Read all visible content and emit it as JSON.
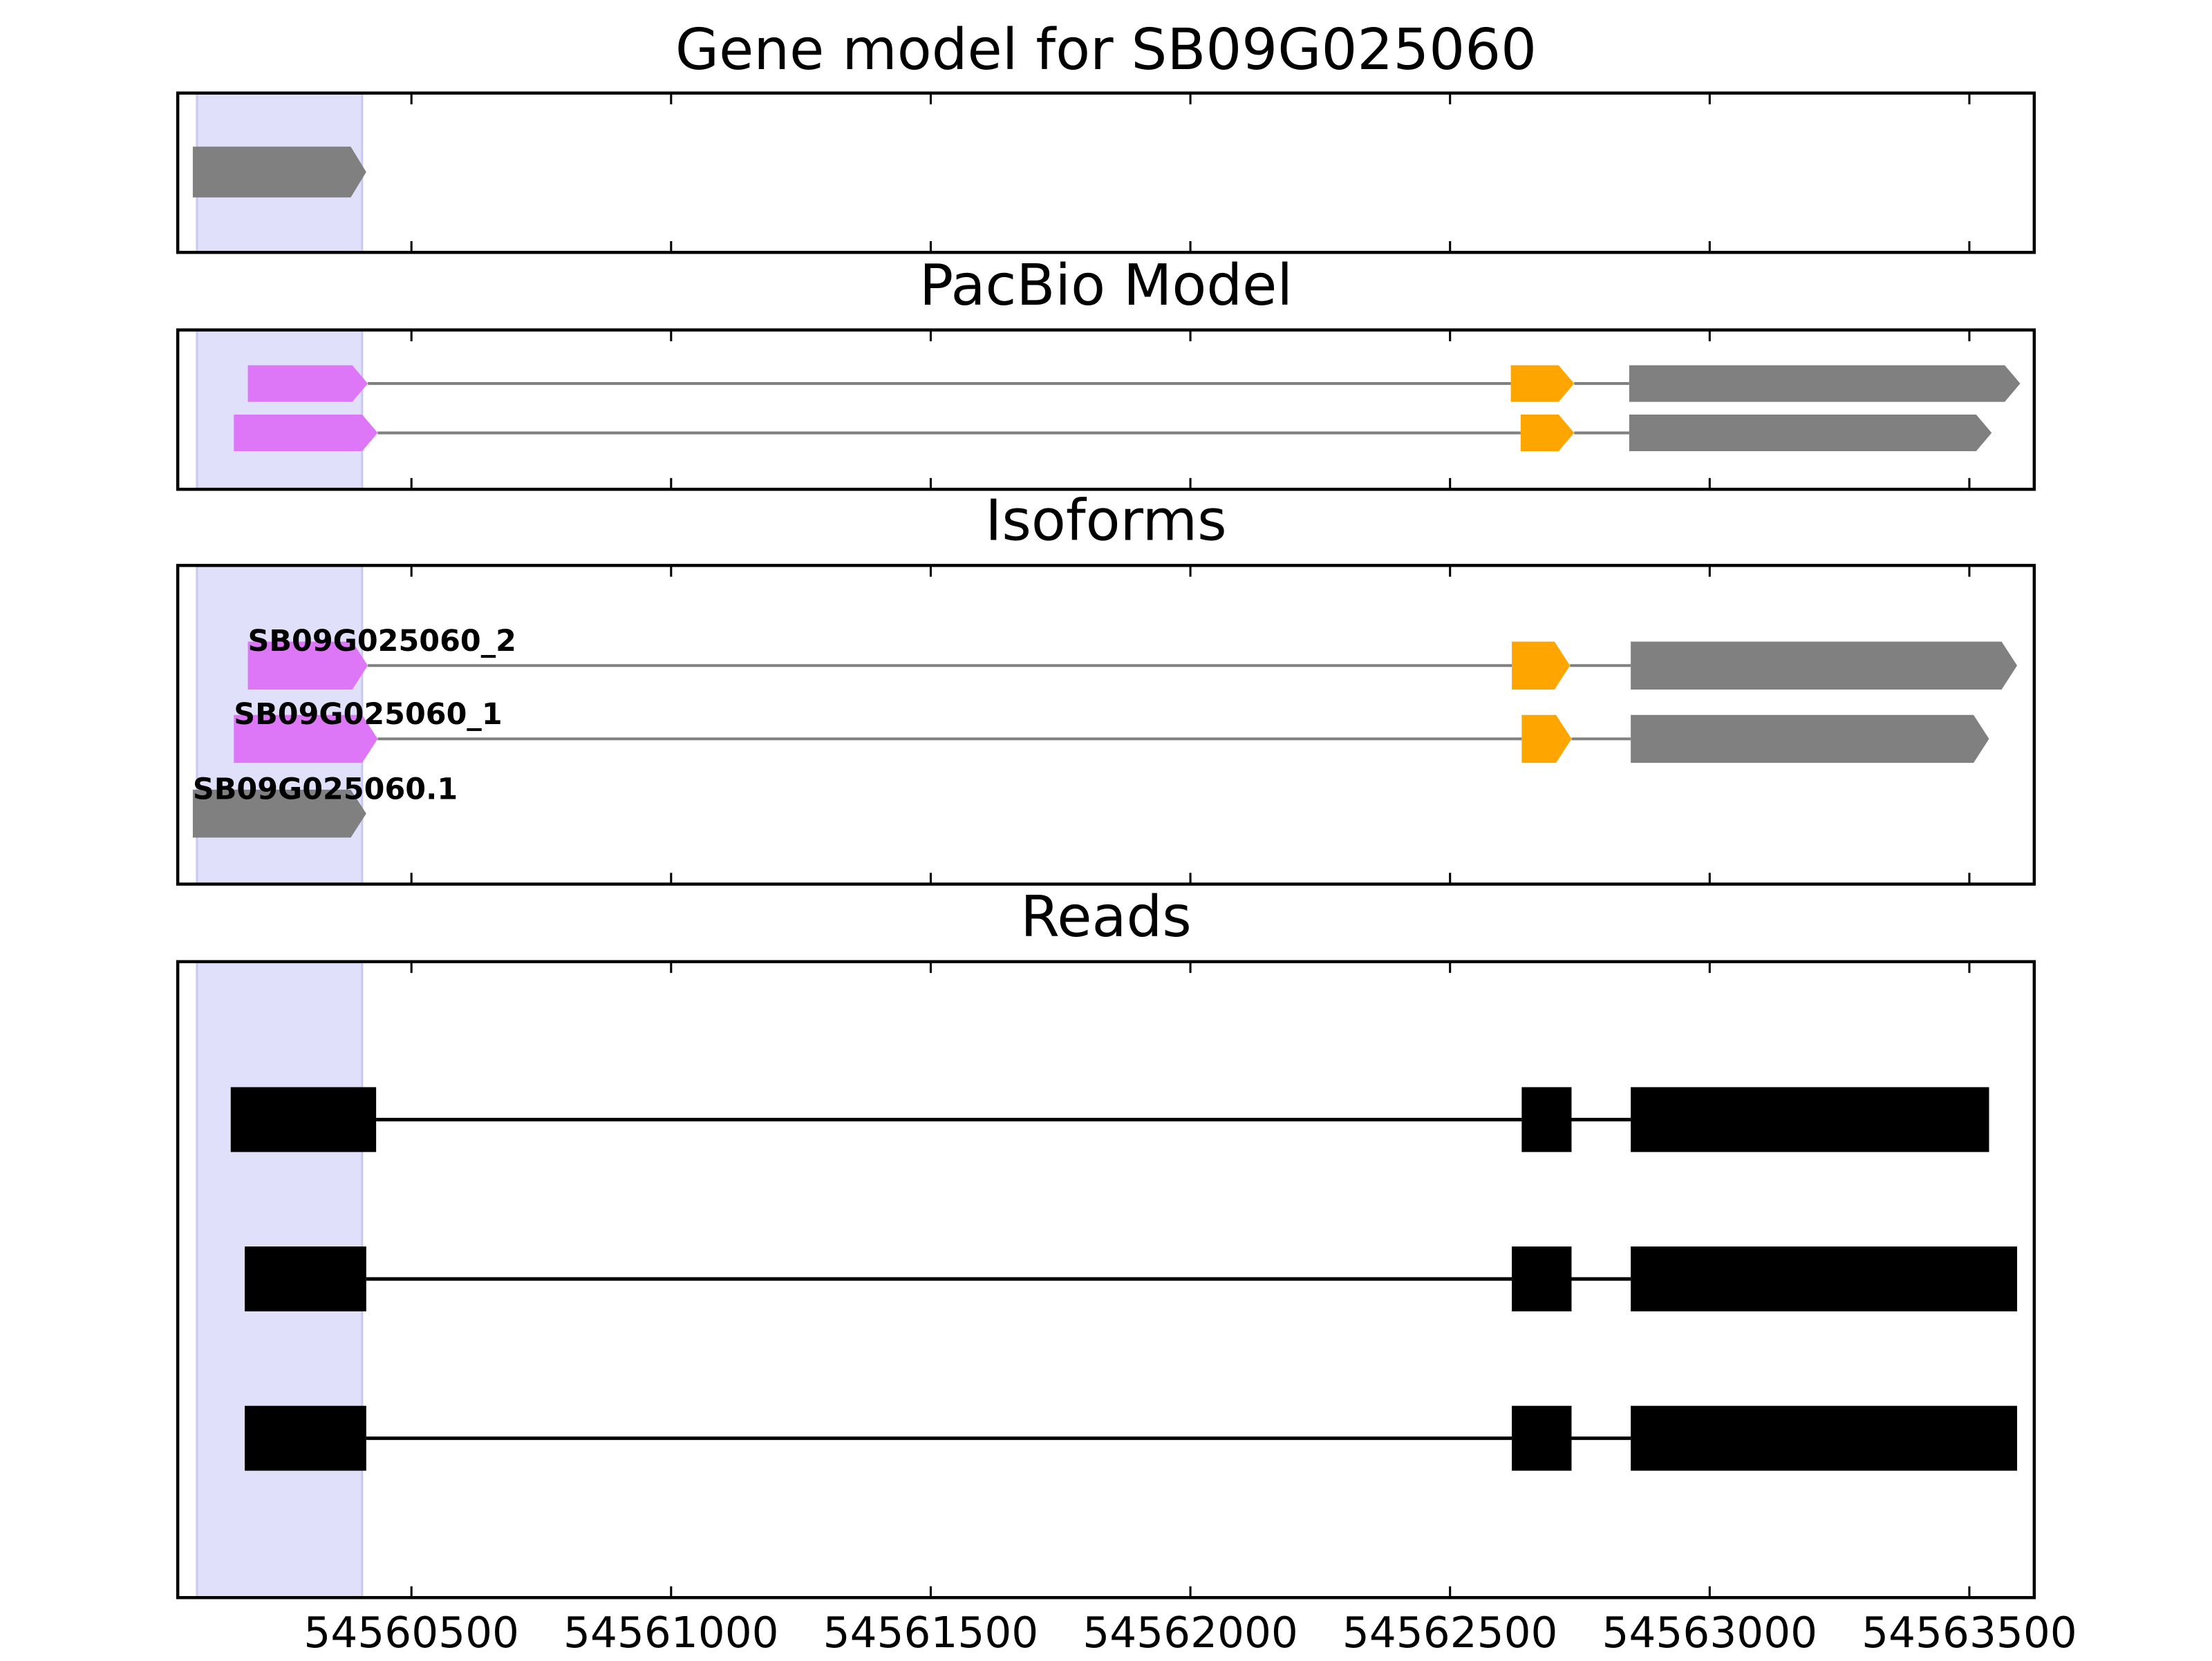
{
  "chart_data": {
    "type": "gene-tracks",
    "xlim": [
      54560050,
      54563625
    ],
    "xticks": [
      54560500,
      54561000,
      54561500,
      54562000,
      54562500,
      54563000,
      54563500
    ],
    "highlight": [
      54560087,
      54560405
    ],
    "highlight_color": "#e0e0fb",
    "panels": [
      {
        "title": "Gene model for SB09G025060",
        "style": "arrow",
        "line_color": "#808080",
        "rows": [
          {
            "exons": [
              {
                "start": 54560079,
                "end": 54560413,
                "color": "#808080"
              }
            ]
          }
        ]
      },
      {
        "title": "PacBio Model",
        "style": "arrow",
        "line_color": "#808080",
        "rows": [
          {
            "exons": [
              {
                "start": 54560185,
                "end": 54560416,
                "color": "#dd77f7"
              },
              {
                "start": 54562617,
                "end": 54562739,
                "color": "#ffa500"
              },
              {
                "start": 54562845,
                "end": 54563598,
                "color": "#808080"
              }
            ]
          },
          {
            "exons": [
              {
                "start": 54560158,
                "end": 54560435,
                "color": "#dd77f7"
              },
              {
                "start": 54562636,
                "end": 54562739,
                "color": "#ffa500"
              },
              {
                "start": 54562845,
                "end": 54563543,
                "color": "#808080"
              }
            ]
          }
        ]
      },
      {
        "title": "Isoforms",
        "style": "arrow",
        "line_color": "#808080",
        "rows": [
          {
            "label": "SB09G025060_2",
            "exons": [
              {
                "start": 54560185,
                "end": 54560416,
                "color": "#dd77f7"
              },
              {
                "start": 54562619,
                "end": 54562731,
                "color": "#ffa500"
              },
              {
                "start": 54562848,
                "end": 54563592,
                "color": "#808080"
              }
            ]
          },
          {
            "label": "SB09G025060_1",
            "exons": [
              {
                "start": 54560158,
                "end": 54560435,
                "color": "#dd77f7"
              },
              {
                "start": 54562638,
                "end": 54562734,
                "color": "#ffa500"
              },
              {
                "start": 54562848,
                "end": 54563538,
                "color": "#808080"
              }
            ]
          },
          {
            "label": "SB09G025060.1",
            "exons": [
              {
                "start": 54560079,
                "end": 54560413,
                "color": "#808080"
              }
            ]
          }
        ]
      },
      {
        "title": "Reads",
        "style": "box",
        "line_color": "#000000",
        "rows": [
          {
            "exons": [
              {
                "start": 54560152,
                "end": 54560432,
                "color": "#000000"
              },
              {
                "start": 54562638,
                "end": 54562734,
                "color": "#000000"
              },
              {
                "start": 54562848,
                "end": 54563538,
                "color": "#000000"
              }
            ]
          },
          {
            "exons": [
              {
                "start": 54560179,
                "end": 54560413,
                "color": "#000000"
              },
              {
                "start": 54562619,
                "end": 54562734,
                "color": "#000000"
              },
              {
                "start": 54562848,
                "end": 54563592,
                "color": "#000000"
              }
            ]
          },
          {
            "exons": [
              {
                "start": 54560179,
                "end": 54560413,
                "color": "#000000"
              },
              {
                "start": 54562619,
                "end": 54562734,
                "color": "#000000"
              },
              {
                "start": 54562848,
                "end": 54563592,
                "color": "#000000"
              }
            ]
          }
        ]
      }
    ]
  }
}
